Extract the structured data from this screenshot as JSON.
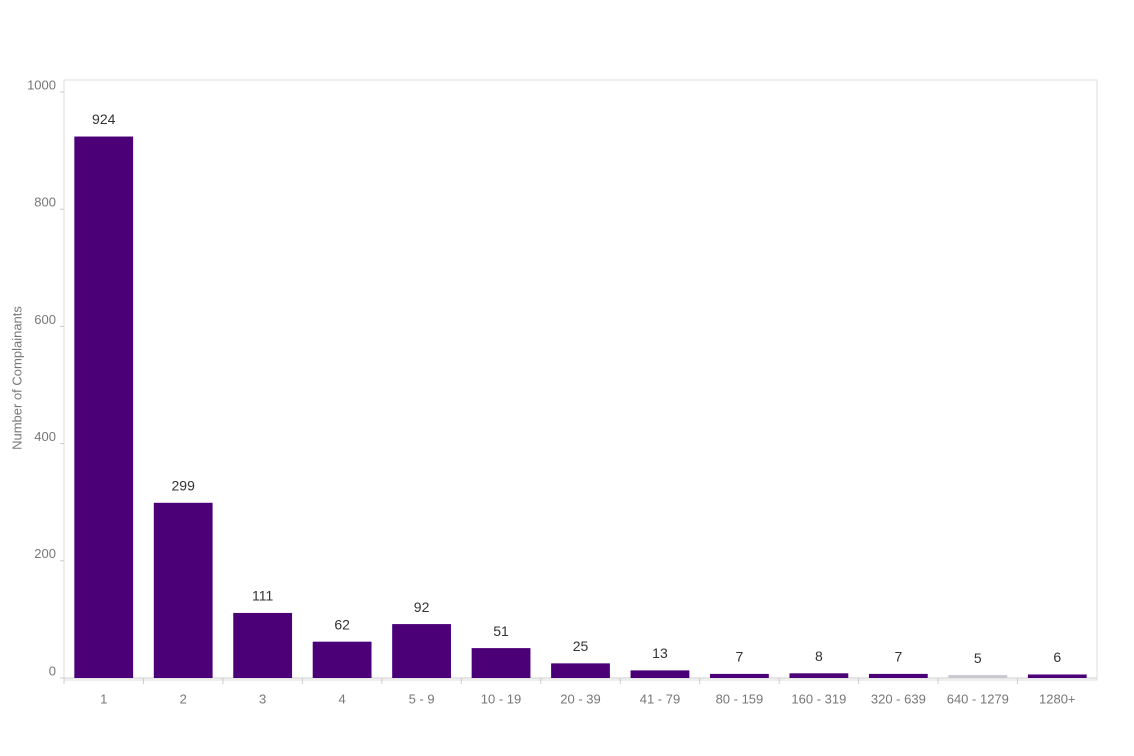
{
  "chart_data": {
    "type": "bar",
    "y_label": "Number of Complainants",
    "categories": [
      "1",
      "2",
      "3",
      "4",
      "5 - 9",
      "10 - 19",
      "20 - 39",
      "41 - 79",
      "80 - 159",
      "160 - 319",
      "320 - 639",
      "640 - 1279",
      "1280+"
    ],
    "values": [
      924,
      299,
      111,
      62,
      92,
      51,
      25,
      13,
      7,
      8,
      7,
      5,
      6
    ],
    "colors": [
      "#4b0078",
      "#4b0078",
      "#4b0078",
      "#4b0078",
      "#4b0078",
      "#4b0078",
      "#4b0078",
      "#4b0078",
      "#4b0078",
      "#4b0078",
      "#4b0078",
      "#c8c8d0",
      "#4b0078"
    ],
    "ylim": [
      0,
      1000
    ],
    "yticks": [
      0,
      200,
      400,
      600,
      800,
      1000
    ],
    "grid": false
  }
}
